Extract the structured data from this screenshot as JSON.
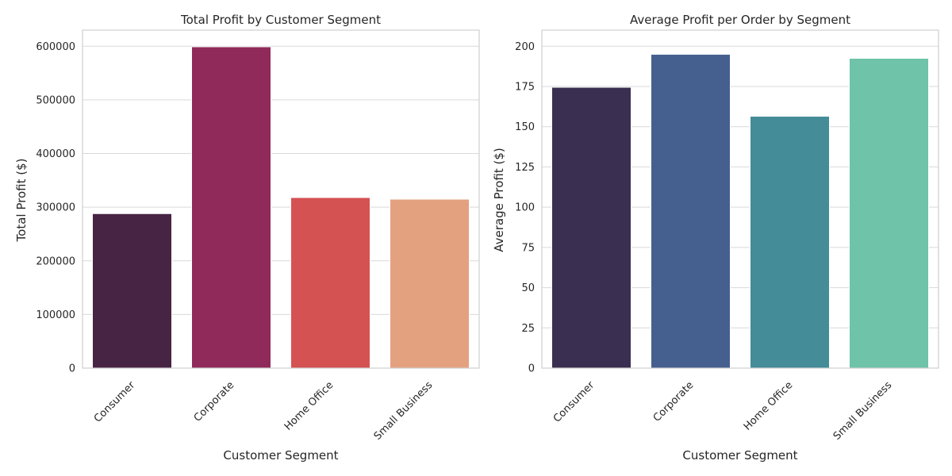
{
  "chart_data": [
    {
      "type": "bar",
      "title": "Total Profit by Customer Segment",
      "xlabel": "Customer Segment",
      "ylabel": "Total Profit ($)",
      "categories": [
        "Consumer",
        "Corporate",
        "Home Office",
        "Small Business"
      ],
      "values": [
        288000,
        599000,
        318000,
        315000
      ],
      "colors": [
        "#472344",
        "#8f2a5a",
        "#d55253",
        "#e4a17f"
      ],
      "ylim": [
        0,
        630000
      ],
      "yticks": [
        0,
        100000,
        200000,
        300000,
        400000,
        500000,
        600000
      ],
      "ytick_labels": [
        "0",
        "100000",
        "200000",
        "300000",
        "400000",
        "500000",
        "600000"
      ],
      "grid": true
    },
    {
      "type": "bar",
      "title": "Average Profit per Order by Segment",
      "xlabel": "Customer Segment",
      "ylabel": "Average Profit ($)",
      "categories": [
        "Consumer",
        "Corporate",
        "Home Office",
        "Small Business"
      ],
      "values": [
        174.5,
        195,
        156.5,
        192.5
      ],
      "colors": [
        "#3a2f50",
        "#45608f",
        "#438c98",
        "#6ec3a8"
      ],
      "ylim": [
        0,
        210
      ],
      "yticks": [
        0,
        25,
        50,
        75,
        100,
        125,
        150,
        175,
        200
      ],
      "ytick_labels": [
        "0",
        "25",
        "50",
        "75",
        "100",
        "125",
        "150",
        "175",
        "200"
      ],
      "grid": true
    }
  ]
}
